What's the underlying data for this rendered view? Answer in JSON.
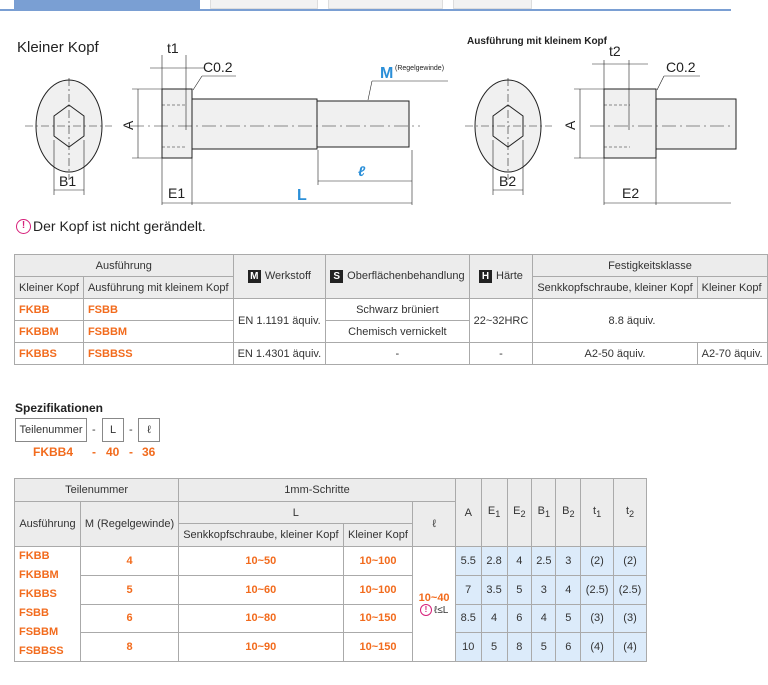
{
  "tabs": {
    "count": 4
  },
  "drawing": {
    "left_title": "Kleiner Kopf",
    "right_title": "Ausführung mit kleinem Kopf",
    "labels": {
      "t1": "t1",
      "t2": "t2",
      "chamfer": "C0.2",
      "M": "M",
      "M_note": "(Regelgewinde)",
      "A": "A",
      "B1": "B1",
      "B2": "B2",
      "E1": "E1",
      "E2": "E2",
      "L": "L",
      "l": "ℓ"
    },
    "accent": "#2b8fd8"
  },
  "note": {
    "icon": "pin-icon",
    "text": "Der Kopf ist nicht gerändelt."
  },
  "material_table": {
    "header": {
      "ausfuehrung": "Ausführung",
      "kleiner_kopf": "Kleiner Kopf",
      "mit_kleinem_kopf": "Ausführung mit kleinem Kopf",
      "werkstoff": "Werkstoff",
      "werkstoff_badge": "M",
      "oberflaeche": "Oberflächenbehandlung",
      "oberflaeche_badge": "S",
      "haerte": "Härte",
      "haerte_badge": "H",
      "festigkeit": "Festigkeitsklasse",
      "senkkopf": "Senkkopfschraube, kleiner Kopf",
      "kleiner_kopf2": "Kleiner Kopf"
    },
    "rows": [
      {
        "a": "FKBB",
        "b": "FSBB",
        "surface": "Schwarz brüniert"
      },
      {
        "a": "FKBBM",
        "b": "FSBBM",
        "surface": "Chemisch vernickelt"
      },
      {
        "a": "FKBBS",
        "b": "FSBBSS",
        "material": "EN 1.4301 äquiv.",
        "surface": "-",
        "hardness": "-",
        "class1": "A2-50 äquiv.",
        "class2": "A2-70 äquiv."
      }
    ],
    "material_12": "EN 1.1191 äquiv.",
    "hardness_12": "22~32HRC",
    "class_12": "8.8 äquiv."
  },
  "spec": {
    "title": "Spezifikationen",
    "boxes": [
      "Teilenummer",
      "L",
      "ℓ"
    ],
    "dash": "-",
    "example": [
      "FKBB4",
      "40",
      "36"
    ]
  },
  "spec_table": {
    "h_teilenummer": "Teilenummer",
    "h_schritte": "1mm-Schritte",
    "h_ausfuehrung": "Ausführung",
    "h_m": "M (Regelgewinde)",
    "h_L": "L",
    "h_senkkopf": "Senkkopfschraube, kleiner Kopf",
    "h_kleiner": "Kleiner Kopf",
    "h_l": "ℓ",
    "dims": [
      "A",
      "E",
      "E",
      "B",
      "B",
      "t",
      "t"
    ],
    "subs": [
      "",
      "1",
      "2",
      "1",
      "2",
      "1",
      "2"
    ],
    "types": [
      "FKBB",
      "FKBBM",
      "FKBBS",
      "FSBB",
      "FSBBM",
      "FSBBSS"
    ],
    "l_range": "10~40",
    "l_note": "ℓ≤L",
    "rows": [
      {
        "m": "4",
        "senk": "10~50",
        "klein": "10~100",
        "d": [
          "5.5",
          "2.8",
          "4",
          "2.5",
          "3",
          "(2)",
          "(2)"
        ]
      },
      {
        "m": "5",
        "senk": "10~60",
        "klein": "10~100",
        "d": [
          "7",
          "3.5",
          "5",
          "3",
          "4",
          "(2.5)",
          "(2.5)"
        ]
      },
      {
        "m": "6",
        "senk": "10~80",
        "klein": "10~150",
        "d": [
          "8.5",
          "4",
          "6",
          "4",
          "5",
          "(3)",
          "(3)"
        ]
      },
      {
        "m": "8",
        "senk": "10~90",
        "klein": "10~150",
        "d": [
          "10",
          "5",
          "8",
          "5",
          "6",
          "(4)",
          "(4)"
        ]
      }
    ]
  }
}
